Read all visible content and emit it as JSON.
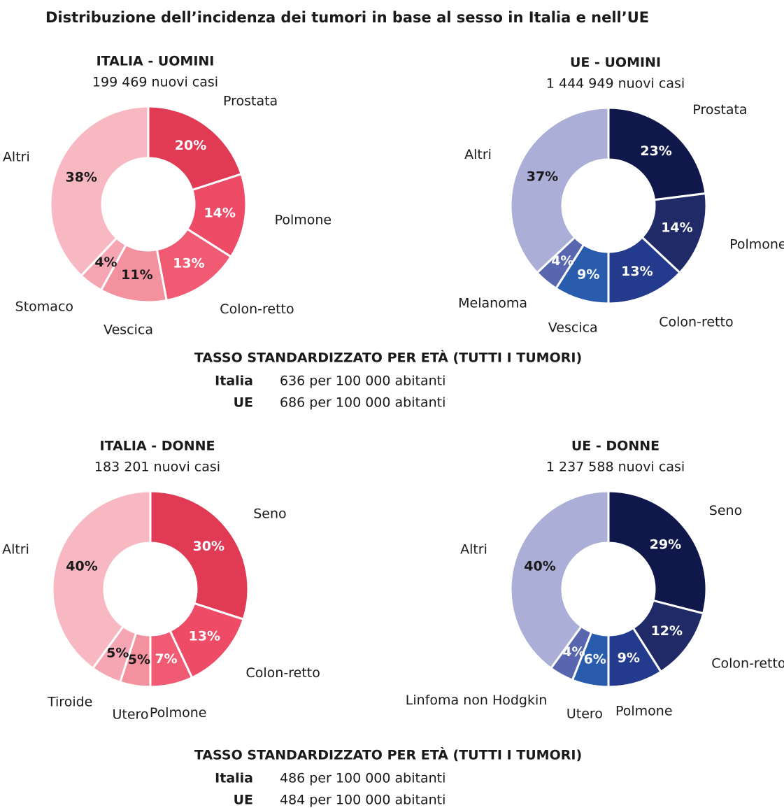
{
  "title": "Distribuzione dell’incidenza dei tumori in base al sesso in Italia e nell’UE",
  "chart_data": [
    {
      "type": "pie",
      "donut": true,
      "title": "ITALIA - UOMINI",
      "subtitle": "199 469 nuovi casi",
      "categories": [
        "Prostata",
        "Polmone",
        "Colon-retto",
        "Vescica",
        "Stomaco",
        "Altri"
      ],
      "values": [
        20,
        14,
        13,
        11,
        4,
        38
      ],
      "value_labels": [
        "20%",
        "14%",
        "13%",
        "11%",
        "4%",
        "38%"
      ],
      "colors": [
        "#e03a54",
        "#ee4c66",
        "#f05a73",
        "#f4919f",
        "#f5a6b2",
        "#f8b8c1"
      ]
    },
    {
      "type": "pie",
      "donut": true,
      "title": "UE - UOMINI",
      "subtitle": "1 444 949 nuovi casi",
      "categories": [
        "Prostata",
        "Polmone",
        "Colon-retto",
        "Vescica",
        "Melanoma",
        "Altri"
      ],
      "values": [
        23,
        14,
        13,
        9,
        4,
        37
      ],
      "value_labels": [
        "23%",
        "14%",
        "13%",
        "9%",
        "4%",
        "37%"
      ],
      "colors": [
        "#10174a",
        "#1f2a66",
        "#243a8c",
        "#2a5cad",
        "#5866b0",
        "#abaed6"
      ]
    },
    {
      "type": "pie",
      "donut": true,
      "title": "ITALIA - DONNE",
      "subtitle": "183 201 nuovi casi",
      "categories": [
        "Seno",
        "Colon-retto",
        "Polmone",
        "Utero",
        "Tiroide",
        "Altri"
      ],
      "values": [
        30,
        13,
        7,
        5,
        5,
        40
      ],
      "value_labels": [
        "30%",
        "13%",
        "7%",
        "5%",
        "5%",
        "40%"
      ],
      "colors": [
        "#e03a54",
        "#ee4c66",
        "#f05a73",
        "#f4919f",
        "#f5a6b2",
        "#f8b8c1"
      ]
    },
    {
      "type": "pie",
      "donut": true,
      "title": "UE - DONNE",
      "subtitle": "1 237 588 nuovi casi",
      "categories": [
        "Seno",
        "Colon-retto",
        "Polmone",
        "Utero",
        "Linfoma non Hodgkin",
        "Altri"
      ],
      "values": [
        29,
        12,
        9,
        6,
        4,
        40
      ],
      "value_labels": [
        "29%",
        "12%",
        "9%",
        "6%",
        "4%",
        "40%"
      ],
      "colors": [
        "#10174a",
        "#1f2a66",
        "#243a8c",
        "#2a5cad",
        "#5866b0",
        "#abaed6"
      ]
    }
  ],
  "rates": [
    {
      "heading": "TASSO STANDARDIZZATO PER ETÀ (TUTTI I TUMORI)",
      "rows": [
        {
          "label": "Italia",
          "text": "636 per 100 000 abitanti"
        },
        {
          "label": "UE",
          "text": "686 per 100 000 abitanti"
        }
      ]
    },
    {
      "heading": "TASSO STANDARDIZZATO PER ETÀ (TUTTI I TUMORI)",
      "rows": [
        {
          "label": "Italia",
          "text": "486 per 100 000 abitanti"
        },
        {
          "label": "UE",
          "text": "484 per 100 000 abitanti"
        }
      ]
    }
  ]
}
